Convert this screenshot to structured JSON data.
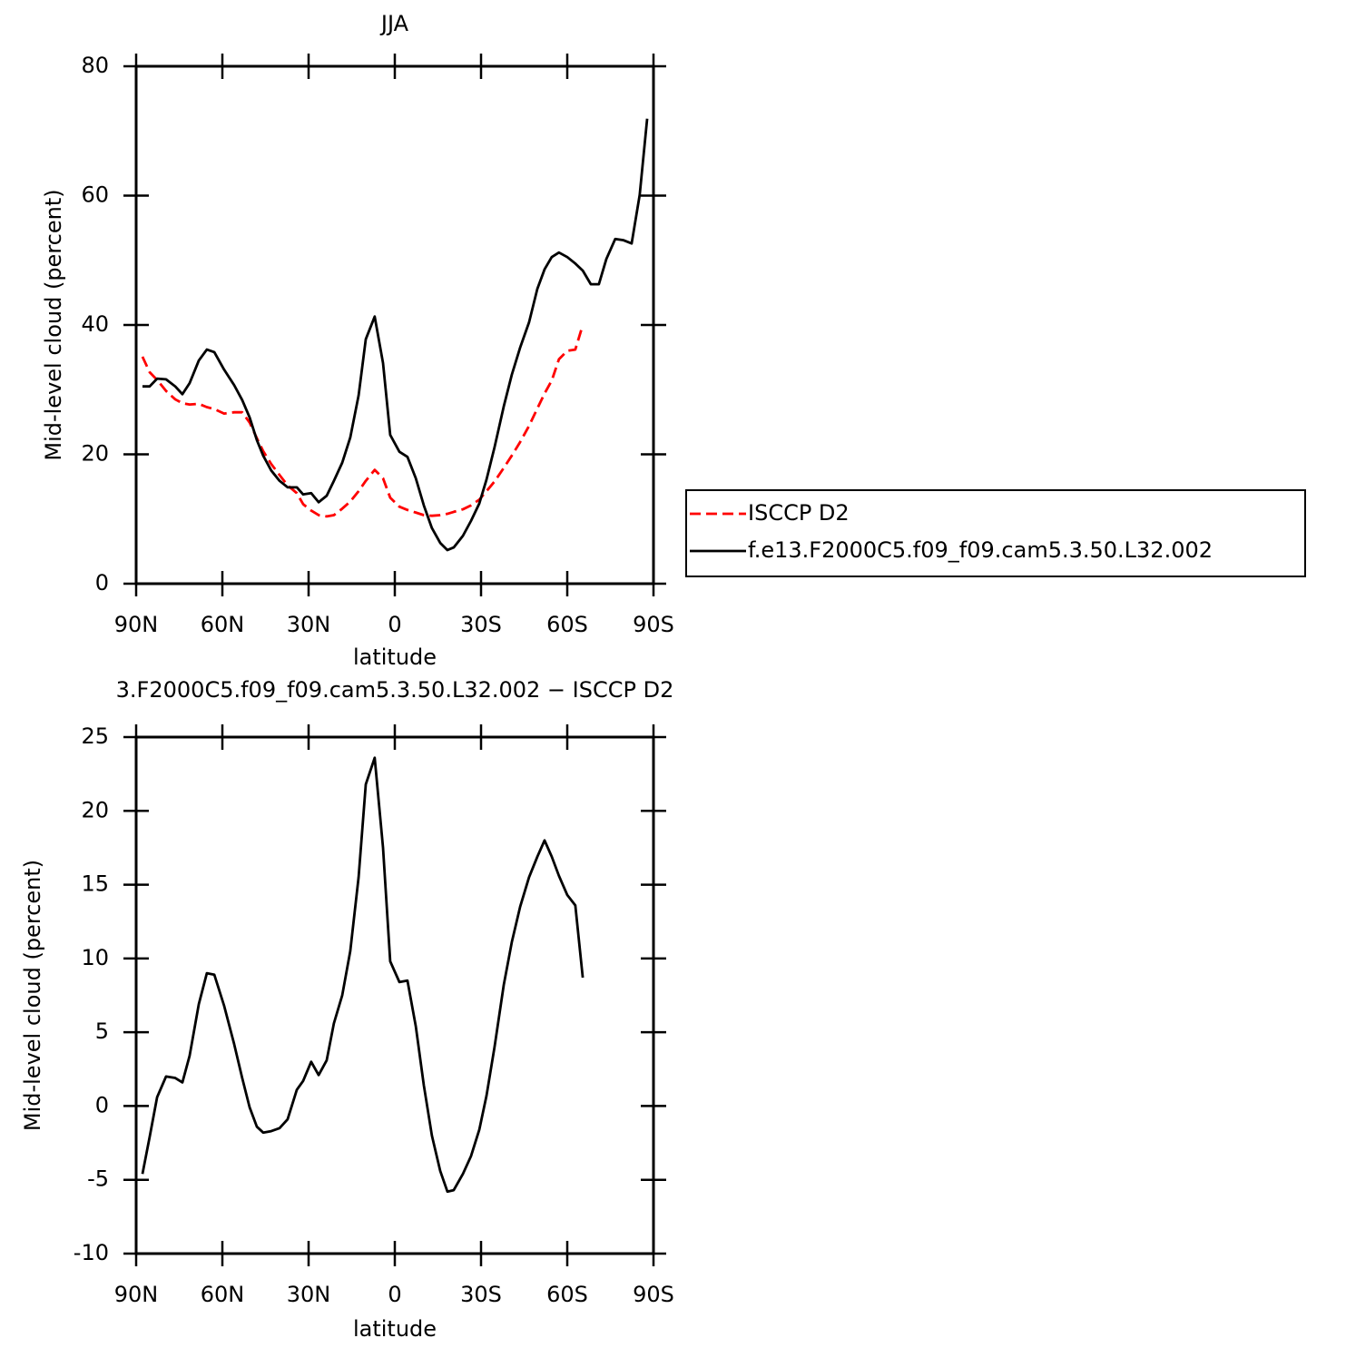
{
  "chart_data": [
    {
      "type": "line",
      "title": "JJA",
      "x_label": "latitude",
      "y_label": "Mid-level cloud (percent)",
      "x": [
        87.8,
        85.3,
        82.7,
        79.6,
        76.4,
        73.9,
        71.4,
        68.2,
        65.4,
        62.8,
        59.4,
        55.9,
        53.1,
        50.5,
        48.0,
        45.8,
        43.0,
        40.1,
        37.3,
        34.1,
        31.9,
        29.1,
        26.5,
        23.7,
        21.2,
        18.3,
        15.5,
        12.6,
        10.1,
        7.0,
        4.1,
        1.6,
        -1.6,
        -4.4,
        -7.3,
        -10.1,
        -12.9,
        -15.8,
        -18.3,
        -20.5,
        -23.7,
        -26.5,
        -29.4,
        -31.9,
        -34.7,
        -37.9,
        -40.7,
        -43.6,
        -46.7,
        -49.6,
        -52.1,
        -54.6,
        -57.1,
        -60.0,
        -62.8,
        -65.4,
        -68.2,
        -71.0,
        -73.6,
        -76.7,
        -79.6,
        -82.4,
        -85.2,
        -87.8
      ],
      "series": [
        {
          "name": "ISCCP D2",
          "color": "#ff0000",
          "dashed": true,
          "values": [
            35.1,
            32.7,
            31.5,
            29.8,
            28.5,
            27.9,
            27.7,
            27.8,
            27.3,
            27.0,
            26.3,
            26.5,
            26.5,
            24.9,
            22.5,
            20.5,
            18.5,
            16.8,
            15.2,
            14.0,
            12.3,
            11.3,
            10.6,
            10.4,
            10.6,
            11.6,
            12.7,
            14.3,
            15.9,
            17.6,
            16.3,
            13.3,
            11.9,
            11.4,
            11.0,
            10.6,
            10.5,
            10.6,
            10.8,
            11.1,
            11.5,
            12.1,
            13.0,
            14.3,
            15.8,
            17.9,
            19.8,
            21.9,
            24.4,
            27.1,
            29.4,
            31.4,
            34.7,
            36.0,
            36.2,
            40.0,
            null,
            null,
            null,
            null,
            null,
            null,
            null,
            null
          ]
        },
        {
          "name": "f.e13.F2000C5.f09_f09.cam5.3.50.L32.002",
          "color": "#000000",
          "dashed": false,
          "values": [
            30.5,
            30.5,
            31.7,
            31.6,
            30.5,
            29.3,
            31.0,
            34.5,
            36.2,
            35.8,
            33.1,
            30.7,
            28.4,
            25.7,
            22.2,
            19.8,
            17.5,
            15.9,
            14.9,
            14.9,
            13.8,
            14.0,
            12.6,
            13.6,
            15.9,
            18.7,
            22.6,
            29.1,
            37.8,
            41.3,
            34.1,
            23.0,
            20.4,
            19.6,
            16.3,
            12.1,
            8.6,
            6.3,
            5.2,
            5.6,
            7.4,
            9.7,
            12.4,
            16.1,
            21.1,
            27.4,
            32.3,
            36.5,
            40.4,
            45.6,
            48.6,
            50.5,
            51.2,
            50.5,
            49.5,
            48.4,
            46.3,
            46.3,
            50.2,
            53.3,
            53.1,
            52.6,
            60.1,
            71.9
          ]
        }
      ],
      "xlim": [
        90,
        -90
      ],
      "xticks": [
        {
          "value": 90,
          "label": "90N"
        },
        {
          "value": 60,
          "label": "60N"
        },
        {
          "value": 30,
          "label": "30N"
        },
        0,
        {
          "value": -30,
          "label": "30S"
        },
        {
          "value": -60,
          "label": "60S"
        },
        {
          "value": -90,
          "label": "90S"
        }
      ],
      "ylim": [
        0,
        80
      ],
      "yticks": [
        0,
        20,
        40,
        60,
        80
      ],
      "legend": "right"
    },
    {
      "type": "line",
      "title": "3.F2000C5.f09_f09.cam5.3.50.L32.002 − ISCCP D2",
      "x_label": "latitude",
      "y_label": "Mid-level cloud (percent)",
      "x": [
        87.8,
        85.3,
        82.7,
        79.6,
        76.4,
        73.9,
        71.4,
        68.2,
        65.4,
        62.8,
        59.4,
        55.9,
        53.1,
        50.5,
        48.0,
        45.8,
        43.0,
        40.1,
        37.3,
        34.1,
        31.9,
        29.1,
        26.5,
        23.7,
        21.2,
        18.3,
        15.5,
        12.6,
        10.1,
        7.0,
        4.1,
        1.6,
        -1.6,
        -4.4,
        -7.3,
        -10.1,
        -12.9,
        -15.8,
        -18.3,
        -20.5,
        -23.7,
        -26.5,
        -29.4,
        -31.9,
        -34.7,
        -37.9,
        -40.7,
        -43.6,
        -46.7,
        -49.6,
        -52.1,
        -54.6,
        -57.1,
        -60.0,
        -62.8,
        -65.4
      ],
      "series": [
        {
          "color": "#000000",
          "dashed": false,
          "values": [
            -4.6,
            -2.1,
            0.6,
            2.0,
            1.9,
            1.6,
            3.4,
            6.9,
            9.0,
            8.9,
            6.8,
            4.2,
            1.9,
            -0.1,
            -1.4,
            -1.8,
            -1.7,
            -1.5,
            -0.9,
            1.1,
            1.7,
            3.0,
            2.1,
            3.1,
            5.6,
            7.5,
            10.5,
            15.5,
            21.8,
            23.6,
            17.5,
            9.8,
            8.4,
            8.5,
            5.4,
            1.4,
            -2.0,
            -4.4,
            -5.8,
            -5.7,
            -4.6,
            -3.4,
            -1.6,
            0.7,
            4.0,
            8.2,
            11.1,
            13.5,
            15.5,
            16.9,
            18.0,
            16.9,
            15.6,
            14.3,
            13.6,
            8.7
          ]
        }
      ],
      "xlim": [
        90,
        -90
      ],
      "xticks": [
        {
          "value": 90,
          "label": "90N"
        },
        {
          "value": 60,
          "label": "60N"
        },
        {
          "value": 30,
          "label": "30N"
        },
        0,
        {
          "value": -30,
          "label": "30S"
        },
        {
          "value": -60,
          "label": "60S"
        },
        {
          "value": -90,
          "label": "90S"
        }
      ],
      "ylim": [
        -10,
        25
      ],
      "yticks": [
        -10,
        -5,
        0,
        5,
        10,
        15,
        20,
        25
      ]
    }
  ]
}
